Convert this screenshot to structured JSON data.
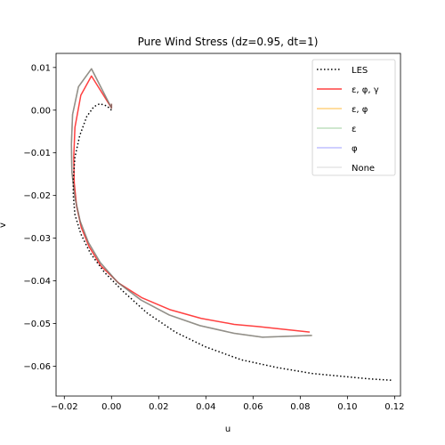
{
  "chart_data": {
    "type": "line",
    "title": "Pure Wind Stress (dz=0.95, dt=1)",
    "xlabel": "u",
    "ylabel": "v",
    "xlim": [
      -0.0235,
      0.1225
    ],
    "ylim": [
      -0.067,
      0.0133
    ],
    "xticks": [
      -0.02,
      0.0,
      0.02,
      0.04,
      0.06,
      0.08,
      0.1,
      0.12
    ],
    "xtick_labels": [
      "−0.02",
      "0.00",
      "0.02",
      "0.04",
      "0.06",
      "0.08",
      "0.10",
      "0.12"
    ],
    "yticks": [
      0.01,
      0.0,
      -0.01,
      -0.02,
      -0.03,
      -0.04,
      -0.05,
      -0.06
    ],
    "ytick_labels": [
      "0.01",
      "0.00",
      "−0.01",
      "−0.02",
      "−0.03",
      "−0.04",
      "−0.05",
      "−0.06"
    ],
    "grid": false,
    "legend_position": "top-right",
    "series": [
      {
        "name": "LES",
        "color": "#000000",
        "dash": "dotted",
        "x": [
          0.0,
          -0.002,
          -0.005,
          -0.0075,
          -0.0105,
          -0.0135,
          -0.0155,
          -0.0162,
          -0.0162,
          -0.0155,
          -0.013,
          -0.009,
          -0.003,
          0.005,
          0.015,
          0.027,
          0.04,
          0.055,
          0.07,
          0.085,
          0.1,
          0.11,
          0.119
        ],
        "y": [
          0.0,
          0.001,
          0.0015,
          0.0008,
          -0.0015,
          -0.006,
          -0.011,
          -0.016,
          -0.02,
          -0.0245,
          -0.029,
          -0.0335,
          -0.038,
          -0.0425,
          -0.0475,
          -0.052,
          -0.0555,
          -0.0585,
          -0.0603,
          -0.0617,
          -0.0625,
          -0.063,
          -0.0633
        ]
      },
      {
        "name": "ε, φ, γ",
        "color": "#ff0000",
        "dash": "solid",
        "x": [
          0.0,
          0.0,
          -0.0085,
          -0.013,
          -0.0155,
          -0.016,
          -0.0158,
          -0.0148,
          -0.0128,
          -0.0095,
          -0.0045,
          0.003,
          0.013,
          0.025,
          0.038,
          0.052,
          0.062,
          0.084
        ],
        "y": [
          0.0015,
          0.0005,
          0.008,
          0.0035,
          -0.004,
          -0.011,
          -0.017,
          -0.0225,
          -0.0275,
          -0.032,
          -0.0365,
          -0.0405,
          -0.044,
          -0.0468,
          -0.0488,
          -0.0502,
          -0.0507,
          -0.052
        ]
      },
      {
        "name": "ε, φ",
        "color": "#ffa500",
        "dash": "solid",
        "x": [
          0.0,
          0.0,
          -0.0085,
          -0.014,
          -0.0165,
          -0.017,
          -0.0168,
          -0.0155,
          -0.0133,
          -0.0098,
          -0.0048,
          0.0025,
          0.0125,
          0.0245,
          0.0375,
          0.052,
          0.064,
          0.085
        ],
        "y": [
          0.0015,
          0.0005,
          0.0097,
          0.0055,
          -0.001,
          -0.008,
          -0.0145,
          -0.0205,
          -0.026,
          -0.031,
          -0.0357,
          -0.0403,
          -0.0445,
          -0.048,
          -0.0505,
          -0.0523,
          -0.0532,
          -0.0528
        ]
      },
      {
        "name": "ε",
        "color": "#008000",
        "dash": "solid",
        "x": [
          0.0,
          0.0,
          -0.0085,
          -0.014,
          -0.0165,
          -0.017,
          -0.0168,
          -0.0155,
          -0.0133,
          -0.0098,
          -0.0048,
          0.0025,
          0.0125,
          0.0245,
          0.0375,
          0.052,
          0.064,
          0.085
        ],
        "y": [
          0.0015,
          0.0005,
          0.0097,
          0.0055,
          -0.001,
          -0.008,
          -0.0145,
          -0.0205,
          -0.026,
          -0.031,
          -0.0357,
          -0.0403,
          -0.0445,
          -0.048,
          -0.0505,
          -0.0523,
          -0.0532,
          -0.0528
        ]
      },
      {
        "name": "φ",
        "color": "#0000ff",
        "dash": "solid",
        "x": [
          0.0,
          0.0,
          -0.0085,
          -0.014,
          -0.0165,
          -0.017,
          -0.0168,
          -0.0155,
          -0.0133,
          -0.0098,
          -0.0048,
          0.0025,
          0.0125,
          0.0245,
          0.0375,
          0.052,
          0.064,
          0.085
        ],
        "y": [
          0.0015,
          0.0005,
          0.0097,
          0.0055,
          -0.001,
          -0.008,
          -0.0145,
          -0.0205,
          -0.026,
          -0.031,
          -0.0357,
          -0.0403,
          -0.0445,
          -0.048,
          -0.0505,
          -0.0523,
          -0.0532,
          -0.0528
        ]
      },
      {
        "name": "None",
        "color": "#999999",
        "dash": "solid",
        "x": [
          0.0,
          0.0,
          -0.0085,
          -0.014,
          -0.0165,
          -0.017,
          -0.0168,
          -0.0155,
          -0.0133,
          -0.0098,
          -0.0048,
          0.0025,
          0.0125,
          0.0245,
          0.0375,
          0.052,
          0.064,
          0.085
        ],
        "y": [
          0.0015,
          0.0005,
          0.0097,
          0.0055,
          -0.001,
          -0.008,
          -0.0145,
          -0.0205,
          -0.026,
          -0.031,
          -0.0357,
          -0.0403,
          -0.0445,
          -0.048,
          -0.0505,
          -0.0523,
          -0.0532,
          -0.0528
        ]
      }
    ]
  },
  "legend": {
    "entries": [
      {
        "label": "LES",
        "color": "#000000",
        "dash": "dotted",
        "alpha": 1.0
      },
      {
        "label": "ε, φ, γ",
        "color": "#ff0000",
        "dash": "solid",
        "alpha": 0.75
      },
      {
        "label": "ε, φ",
        "color": "#ffa500",
        "dash": "solid",
        "alpha": 0.5
      },
      {
        "label": "ε",
        "color": "#008000",
        "dash": "solid",
        "alpha": 0.25
      },
      {
        "label": "φ",
        "color": "#0000ff",
        "dash": "solid",
        "alpha": 0.25
      },
      {
        "label": "None",
        "color": "#999999",
        "dash": "solid",
        "alpha": 0.25
      }
    ]
  }
}
